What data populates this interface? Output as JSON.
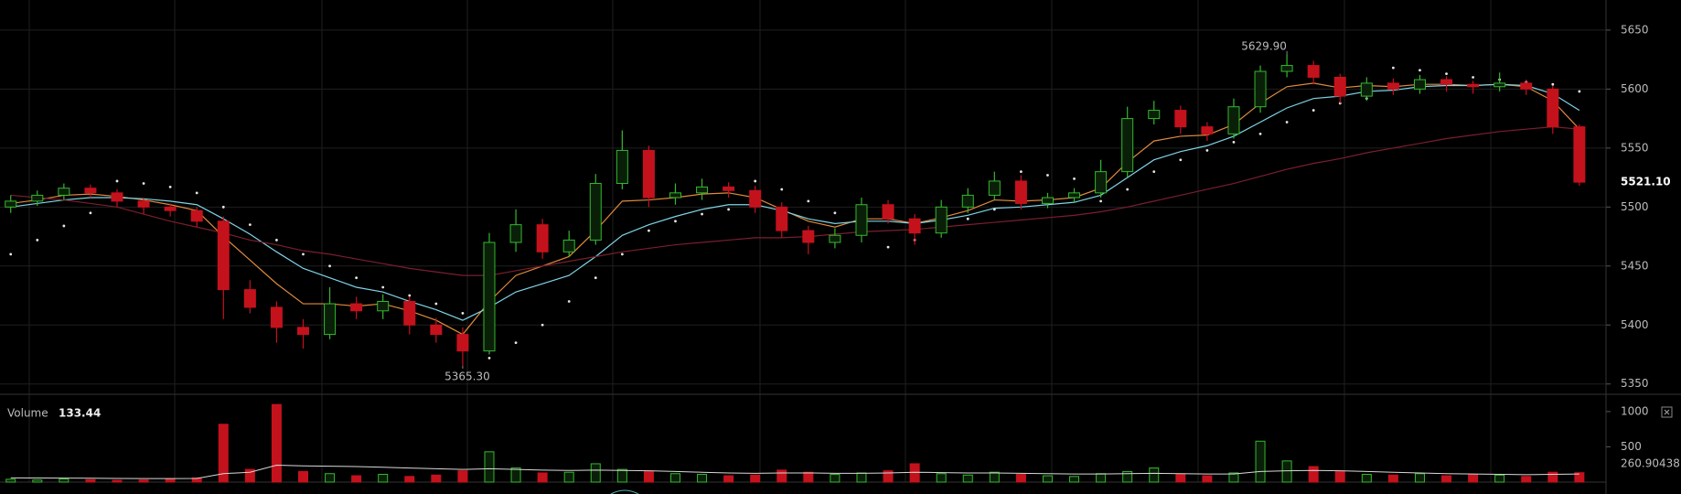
{
  "chart_data": [
    {
      "type": "candlestick",
      "up_color": "#35b82f",
      "down_color": "#c4121d",
      "ylim": [
        5343.6,
        5675.5
      ],
      "yticks": [
        5350,
        5400,
        5450,
        5500,
        5550,
        5600,
        5650
      ],
      "grid": true,
      "open": [
        5500,
        5505,
        5510,
        5516,
        5512,
        5505,
        5500,
        5497,
        5488,
        5430,
        5415,
        5398,
        5392,
        5418,
        5412,
        5420,
        5400,
        5392,
        5378,
        5470,
        5485,
        5462,
        5472,
        5520,
        5548,
        5508,
        5512,
        5517,
        5514,
        5500,
        5480,
        5470,
        5476,
        5502,
        5490,
        5478,
        5500,
        5510,
        5522,
        5503,
        5508,
        5512,
        5530,
        5575,
        5582,
        5568,
        5562,
        5585,
        5615,
        5620,
        5610,
        5594,
        5605,
        5600,
        5608,
        5604,
        5602,
        5605,
        5600,
        5568
      ],
      "high": [
        5510,
        5514,
        5520,
        5519,
        5515,
        5508,
        5503,
        5500,
        5492,
        5438,
        5420,
        5405,
        5432,
        5424,
        5426,
        5424,
        5406,
        5398,
        5478,
        5498,
        5490,
        5480,
        5528,
        5565,
        5552,
        5520,
        5524,
        5521,
        5518,
        5504,
        5484,
        5482,
        5508,
        5506,
        5494,
        5506,
        5516,
        5530,
        5527,
        5512,
        5516,
        5540,
        5585,
        5590,
        5586,
        5572,
        5592,
        5620,
        5629.9,
        5624,
        5613,
        5610,
        5609,
        5612,
        5611,
        5607,
        5614,
        5608,
        5603,
        5570
      ],
      "low": [
        5495,
        5501,
        5506,
        5508,
        5500,
        5494,
        5492,
        5483,
        5405,
        5410,
        5385,
        5380,
        5388,
        5405,
        5405,
        5392,
        5385,
        5365.3,
        5375,
        5462,
        5456,
        5458,
        5468,
        5515,
        5500,
        5502,
        5506,
        5508,
        5495,
        5474,
        5460,
        5465,
        5470,
        5486,
        5468,
        5474,
        5495,
        5506,
        5498,
        5499,
        5504,
        5508,
        5525,
        5570,
        5562,
        5556,
        5558,
        5580,
        5610,
        5604,
        5588,
        5590,
        5595,
        5596,
        5598,
        5596,
        5598,
        5595,
        5562,
        5518
      ],
      "close": [
        5505,
        5510,
        5516,
        5512,
        5505,
        5500,
        5497,
        5488,
        5430,
        5415,
        5398,
        5392,
        5418,
        5412,
        5420,
        5400,
        5392,
        5378,
        5470,
        5485,
        5462,
        5472,
        5520,
        5548,
        5508,
        5512,
        5517,
        5514,
        5500,
        5480,
        5470,
        5476,
        5502,
        5490,
        5478,
        5500,
        5510,
        5522,
        5503,
        5508,
        5512,
        5530,
        5575,
        5582,
        5568,
        5562,
        5585,
        5615,
        5620,
        5610,
        5594,
        5605,
        5600,
        5608,
        5604,
        5602,
        5605,
        5600,
        5568,
        5521.1
      ],
      "lines": [
        {
          "color": "#e08a3c",
          "values": [
            5503,
            5506,
            5510,
            5511,
            5509,
            5506,
            5502,
            5497,
            5475,
            5455,
            5435,
            5418,
            5418,
            5416,
            5418,
            5412,
            5404,
            5392,
            5420,
            5442,
            5450,
            5458,
            5480,
            5505,
            5506,
            5508,
            5511,
            5512,
            5508,
            5498,
            5488,
            5483,
            5490,
            5490,
            5486,
            5491,
            5497,
            5506,
            5505,
            5506,
            5508,
            5516,
            5538,
            5556,
            5560,
            5561,
            5570,
            5588,
            5602,
            5605,
            5601,
            5603,
            5602,
            5604,
            5604,
            5603,
            5604,
            5602,
            5590,
            5566
          ]
        },
        {
          "color": "#7fd3e6",
          "values": [
            5500,
            5503,
            5506,
            5508,
            5508,
            5507,
            5505,
            5502,
            5490,
            5477,
            5462,
            5448,
            5440,
            5432,
            5428,
            5420,
            5413,
            5404,
            5415,
            5428,
            5435,
            5442,
            5458,
            5476,
            5485,
            5492,
            5498,
            5502,
            5502,
            5497,
            5490,
            5486,
            5488,
            5488,
            5486,
            5489,
            5493,
            5499,
            5500,
            5502,
            5504,
            5510,
            5525,
            5540,
            5547,
            5552,
            5560,
            5572,
            5584,
            5592,
            5594,
            5598,
            5599,
            5602,
            5603,
            5603,
            5604,
            5603,
            5596,
            5582
          ]
        },
        {
          "color": "#7a1f2e",
          "values": [
            5510,
            5508,
            5506,
            5503,
            5500,
            5494,
            5488,
            5483,
            5478,
            5472,
            5468,
            5463,
            5460,
            5456,
            5452,
            5448,
            5445,
            5442,
            5442,
            5446,
            5450,
            5454,
            5458,
            5462,
            5465,
            5468,
            5470,
            5472,
            5474,
            5474,
            5475,
            5477,
            5479,
            5480,
            5481,
            5483,
            5485,
            5487,
            5489,
            5491,
            5493,
            5496,
            5500,
            5505,
            5510,
            5515,
            5520,
            5526,
            5532,
            5537,
            5541,
            5546,
            5550,
            5554,
            5558,
            5561,
            5564,
            5566,
            5568,
            5566
          ]
        }
      ],
      "dots": {
        "color": "#e6e6e6",
        "values": [
          5460,
          5472,
          5484,
          5495,
          5522,
          5520,
          5517,
          5512,
          5500,
          5485,
          5472,
          5460,
          5450,
          5440,
          5432,
          5425,
          5418,
          5410,
          5372,
          5385,
          5400,
          5420,
          5440,
          5460,
          5480,
          5488,
          5494,
          5498,
          5522,
          5515,
          5505,
          5495,
          5490,
          5466,
          5472,
          5480,
          5490,
          5498,
          5530,
          5527,
          5524,
          5505,
          5515,
          5530,
          5540,
          5548,
          5555,
          5562,
          5572,
          5582,
          5588,
          5592,
          5618,
          5616,
          5613,
          5610,
          5608,
          5606,
          5604,
          5598
        ]
      },
      "last_price": {
        "value": 5521.1,
        "label": "5521.10"
      },
      "annotations": [
        {
          "value": 5629.9,
          "label": "5629.90"
        },
        {
          "value": 5365.3,
          "label": "5365.30"
        }
      ]
    },
    {
      "type": "bar",
      "title": "Volume",
      "ylim": [
        0,
        1180
      ],
      "yticks": [
        500,
        1000
      ],
      "values": [
        40,
        30,
        45,
        35,
        25,
        30,
        40,
        60,
        820,
        180,
        1100,
        150,
        120,
        90,
        110,
        80,
        100,
        160,
        430,
        200,
        130,
        140,
        260,
        180,
        150,
        120,
        110,
        90,
        100,
        170,
        140,
        110,
        130,
        160,
        260,
        120,
        100,
        140,
        110,
        90,
        80,
        120,
        150,
        200,
        110,
        90,
        130,
        580,
        300,
        220,
        150,
        110,
        100,
        120,
        90,
        110,
        100,
        80,
        140,
        133.44
      ],
      "lines": [
        {
          "color": "#d8d8d8",
          "values": [
            60,
            58,
            57,
            55,
            52,
            50,
            50,
            52,
            120,
            140,
            240,
            230,
            225,
            220,
            210,
            200,
            190,
            180,
            190,
            180,
            170,
            165,
            170,
            165,
            160,
            150,
            140,
            130,
            125,
            130,
            130,
            125,
            125,
            130,
            140,
            135,
            130,
            130,
            125,
            120,
            115,
            115,
            120,
            125,
            120,
            115,
            115,
            150,
            160,
            165,
            160,
            150,
            140,
            130,
            120,
            115,
            110,
            105,
            110,
            115
          ]
        }
      ],
      "ma_label": 260.90438
    }
  ]
}
